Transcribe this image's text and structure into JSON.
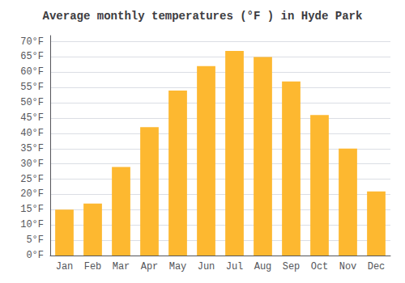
{
  "chart_data": {
    "type": "bar",
    "title": "Average monthly temperatures (°F ) in Hyde Park",
    "categories": [
      "Jan",
      "Feb",
      "Mar",
      "Apr",
      "May",
      "Jun",
      "Jul",
      "Aug",
      "Sep",
      "Oct",
      "Nov",
      "Dec"
    ],
    "values": [
      15,
      17,
      29,
      42,
      54,
      62,
      67,
      65,
      57,
      46,
      35,
      21
    ],
    "color": "#FDB830",
    "ylim": [
      0,
      72
    ],
    "yticks": [
      {
        "value": 0,
        "label": "0°F"
      },
      {
        "value": 5,
        "label": "5°F"
      },
      {
        "value": 10,
        "label": "10°F"
      },
      {
        "value": 15,
        "label": "15°F"
      },
      {
        "value": 20,
        "label": "20°F"
      },
      {
        "value": 25,
        "label": "25°F"
      },
      {
        "value": 30,
        "label": "30°F"
      },
      {
        "value": 35,
        "label": "35°F"
      },
      {
        "value": 40,
        "label": "40°F"
      },
      {
        "value": 45,
        "label": "45°F"
      },
      {
        "value": 50,
        "label": "50°F"
      },
      {
        "value": 55,
        "label": "55°F"
      },
      {
        "value": 60,
        "label": "60°F"
      },
      {
        "value": 65,
        "label": "65°F"
      },
      {
        "value": 70,
        "label": "70°F"
      }
    ],
    "grid": true
  }
}
